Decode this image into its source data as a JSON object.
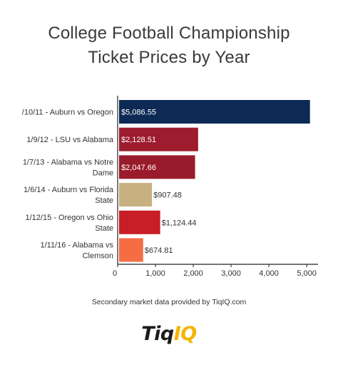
{
  "title_line1": "College Football Championship",
  "title_line2": "Ticket Prices by Year",
  "source": "Secondary market data provided by TiqIQ.com",
  "logo": {
    "part1": "Tiq",
    "part2": "IQ"
  },
  "colors": {
    "bar1": "#0d2a55",
    "bar2": "#9d1c2e",
    "bar3": "#9a1b2b",
    "bar4": "#c8b181",
    "bar5": "#c81e26",
    "bar6": "#f46d43",
    "axis": "#222222",
    "logo_accent": "#f5b400"
  },
  "chart_data": {
    "type": "bar",
    "orientation": "horizontal",
    "categories": [
      [
        "/10/11 - Auburn vs Oregon"
      ],
      [
        "1/9/12 - LSU vs Alabama"
      ],
      [
        "1/7/13 - Alabama vs Notre",
        "Dame"
      ],
      [
        "1/6/14 - Auburn vs Florida",
        "State"
      ],
      [
        "1/12/15 - Oregon vs Ohio",
        "State"
      ],
      [
        "1/11/16 - Alabama vs",
        "Clemson"
      ]
    ],
    "values": [
      5086.55,
      2128.51,
      2047.66,
      907.48,
      1124.44,
      674.81
    ],
    "value_labels": [
      "$5,086.55",
      "$2,128.51",
      "$2,047.66",
      "$907.48",
      "$1,124.44",
      "$674.81"
    ],
    "xlim": [
      0,
      5300
    ],
    "xticks": [
      0,
      1000,
      2000,
      3000,
      4000,
      5000
    ],
    "xtick_labels": [
      "0",
      "1,000",
      "2,000",
      "3,000",
      "4,000",
      "5,000"
    ],
    "grid": false,
    "legend": "none"
  }
}
